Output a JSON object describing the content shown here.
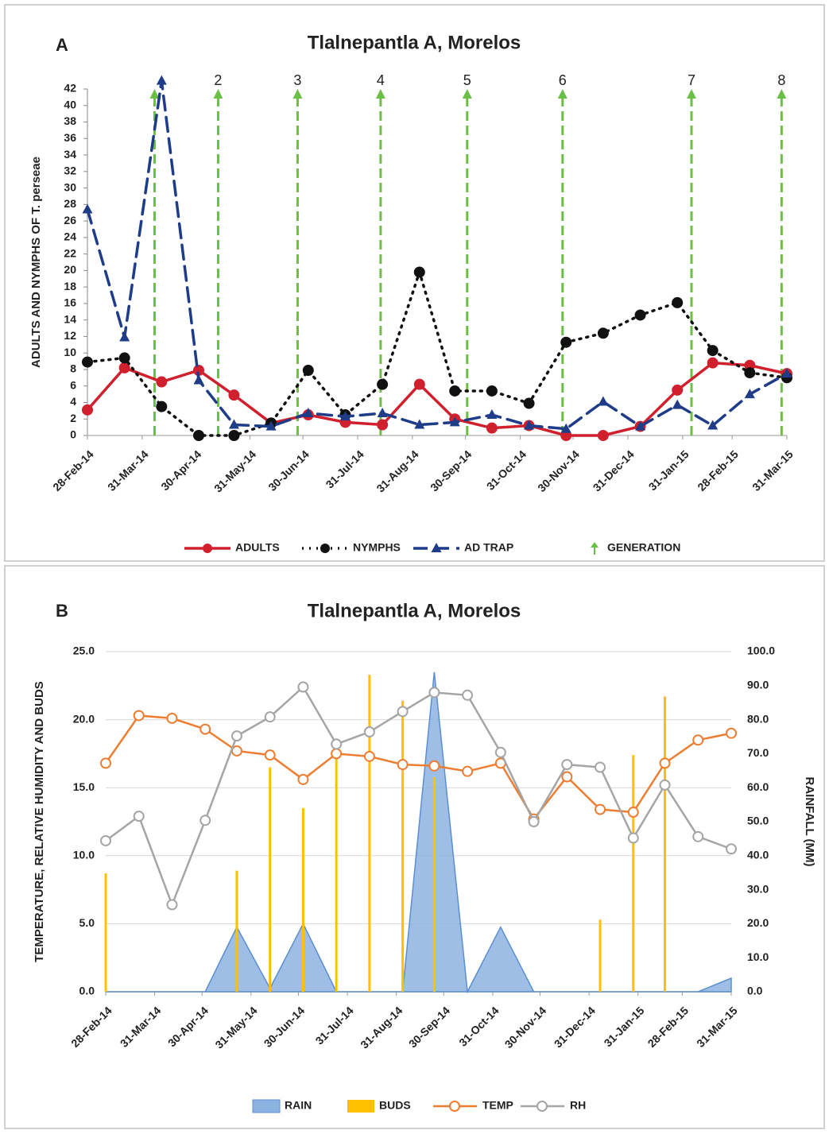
{
  "chart_data": [
    {
      "type": "line",
      "panel_label": "A",
      "title": "Tlalnepantla A, Morelos",
      "ylabel": "ADULTS AND NYMPHS OF T. perseae",
      "x": [
        "2014-02-28",
        "2014-03-21",
        "2014-04-11",
        "2014-05-02",
        "2014-05-22",
        "2014-06-12",
        "2014-07-03",
        "2014-07-24",
        "2014-08-14",
        "2014-09-04",
        "2014-09-24",
        "2014-10-15",
        "2014-11-05",
        "2014-11-26",
        "2014-12-17",
        "2015-01-07",
        "2015-01-28",
        "2015-02-17",
        "2015-03-10",
        "2015-03-31"
      ],
      "xlim": [
        "2014-02-28",
        "2015-03-31"
      ],
      "xticks": [
        {
          "value": "2014-02-28",
          "label": "28-Feb-14"
        },
        {
          "value": "2014-03-31",
          "label": "31-Mar-14"
        },
        {
          "value": "2014-04-30",
          "label": "30-Apr-14"
        },
        {
          "value": "2014-05-31",
          "label": "31-May-14"
        },
        {
          "value": "2014-06-30",
          "label": "30-Jun-14"
        },
        {
          "value": "2014-07-31",
          "label": "31-Jul-14"
        },
        {
          "value": "2014-08-31",
          "label": "31-Aug-14"
        },
        {
          "value": "2014-09-30",
          "label": "30-Sep-14"
        },
        {
          "value": "2014-10-31",
          "label": "31-Oct-14"
        },
        {
          "value": "2014-11-30",
          "label": "30-Nov-14"
        },
        {
          "value": "2014-12-31",
          "label": "31-Dec-14"
        },
        {
          "value": "2015-01-31",
          "label": "31-Jan-15"
        },
        {
          "value": "2015-02-28",
          "label": "28-Feb-15"
        },
        {
          "value": "2015-03-31",
          "label": "31-Mar-15"
        }
      ],
      "ylim": [
        0,
        42
      ],
      "yticks": [
        0,
        2,
        4,
        6,
        8,
        10,
        12,
        14,
        16,
        18,
        20,
        22,
        24,
        26,
        28,
        30,
        32,
        34,
        36,
        38,
        40,
        42
      ],
      "grid": false,
      "legend": "bottom",
      "series": [
        {
          "name": "ADULTS",
          "color": "#d0202e",
          "line_style": "solid",
          "marker": "circle",
          "values": [
            3.1,
            8.2,
            6.5,
            7.9,
            4.9,
            1.5,
            2.5,
            1.6,
            1.3,
            6.2,
            2.0,
            0.9,
            1.2,
            0,
            0,
            1.1,
            5.5,
            8.8,
            8.5,
            7.5
          ]
        },
        {
          "name": "NYMPHS",
          "color": "#111111",
          "line_style": "dotted",
          "marker": "circle",
          "values": [
            8.9,
            9.4,
            3.5,
            0,
            0,
            1.5,
            7.9,
            2.5,
            6.2,
            19.8,
            5.4,
            5.4,
            3.9,
            11.3,
            12.4,
            14.6,
            16.1,
            10.3,
            7.6,
            7.0
          ]
        },
        {
          "name": "AD TRAP",
          "color": "#1f3c88",
          "line_style": "dashed",
          "marker": "triangle",
          "values": [
            27.4,
            11.9,
            43,
            6.7,
            1.3,
            1.1,
            2.7,
            2.3,
            2.7,
            1.3,
            1.6,
            2.5,
            1.2,
            0.8,
            4.1,
            1.1,
            3.7,
            1.2,
            5.0,
            7.5
          ]
        }
      ],
      "generations": {
        "name": "GENERATION",
        "color": "#6cbf45",
        "x": [
          "2014-04-07",
          "2014-05-13",
          "2014-06-27",
          "2014-08-13",
          "2014-10-01",
          "2014-11-24",
          "2015-02-05",
          "2015-03-28"
        ],
        "labels": [
          null,
          "2",
          "3",
          "4",
          "5",
          "6",
          "7",
          "8"
        ]
      }
    },
    {
      "type": "combo",
      "panel_label": "B",
      "title": "Tlalnepantla A, Morelos",
      "ylabel": "TEMPERATURE, RELATIVE HUMIDITY AND BUDS",
      "y2label": "RAINFALL (MM)",
      "x": [
        "2014-02-28",
        "2014-03-21",
        "2014-04-11",
        "2014-05-02",
        "2014-05-22",
        "2014-06-12",
        "2014-07-03",
        "2014-07-24",
        "2014-08-14",
        "2014-09-04",
        "2014-09-24",
        "2014-10-15",
        "2014-11-05",
        "2014-11-26",
        "2014-12-17",
        "2015-01-07",
        "2015-01-28",
        "2015-02-17",
        "2015-03-10",
        "2015-03-31"
      ],
      "xlim": [
        "2014-02-28",
        "2015-03-31"
      ],
      "xticks": [
        {
          "value": "2014-02-28",
          "label": "28-Feb-14"
        },
        {
          "value": "2014-03-31",
          "label": "31-Mar-14"
        },
        {
          "value": "2014-04-30",
          "label": "30-Apr-14"
        },
        {
          "value": "2014-05-31",
          "label": "31-May-14"
        },
        {
          "value": "2014-06-30",
          "label": "30-Jun-14"
        },
        {
          "value": "2014-07-31",
          "label": "31-Jul-14"
        },
        {
          "value": "2014-08-31",
          "label": "31-Aug-14"
        },
        {
          "value": "2014-09-30",
          "label": "30-Sep-14"
        },
        {
          "value": "2014-10-31",
          "label": "31-Oct-14"
        },
        {
          "value": "2014-11-30",
          "label": "30-Nov-14"
        },
        {
          "value": "2014-12-31",
          "label": "31-Dec-14"
        },
        {
          "value": "2015-01-31",
          "label": "31-Jan-15"
        },
        {
          "value": "2015-02-28",
          "label": "28-Feb-15"
        },
        {
          "value": "2015-03-31",
          "label": "31-Mar-15"
        }
      ],
      "ylim": [
        0,
        25
      ],
      "yticks": [
        {
          "value": 0,
          "label": "0.0"
        },
        {
          "value": 5,
          "label": "5.0"
        },
        {
          "value": 10,
          "label": "10.0"
        },
        {
          "value": 15,
          "label": "15.0"
        },
        {
          "value": 20,
          "label": "20.0"
        },
        {
          "value": 25,
          "label": "25.0"
        }
      ],
      "y2lim": [
        0,
        100
      ],
      "y2ticks": [
        {
          "value": 0,
          "label": "0.0"
        },
        {
          "value": 10,
          "label": "10.0"
        },
        {
          "value": 20,
          "label": "20.0"
        },
        {
          "value": 30,
          "label": "30.0"
        },
        {
          "value": 40,
          "label": "40.0"
        },
        {
          "value": 50,
          "label": "50.0"
        },
        {
          "value": 60,
          "label": "60.0"
        },
        {
          "value": 70,
          "label": "70.0"
        },
        {
          "value": 80,
          "label": "80.0"
        },
        {
          "value": 90,
          "label": "90.0"
        },
        {
          "value": 100,
          "label": "100.0"
        }
      ],
      "grid": true,
      "legend": "bottom",
      "series": [
        {
          "name": "RAIN",
          "type": "area",
          "axis": "y2",
          "color": "#8db3e2",
          "values": [
            0,
            0,
            0,
            0,
            19,
            1,
            20,
            0,
            0,
            0,
            94,
            0,
            19,
            0,
            0,
            0,
            0,
            0,
            0,
            4
          ]
        },
        {
          "name": "BUDS",
          "type": "bar",
          "color": "#ffc000",
          "values": [
            8.7,
            0,
            0,
            0,
            8.9,
            16.5,
            13.5,
            18.5,
            23.3,
            21.4,
            15.8,
            0,
            0,
            0,
            0,
            5.3,
            17.4,
            21.7,
            0,
            0
          ]
        },
        {
          "name": "TEMP",
          "type": "line",
          "color": "#ed7d31",
          "values": [
            16.8,
            20.3,
            20.1,
            19.3,
            17.7,
            17.4,
            15.6,
            17.5,
            17.3,
            16.7,
            16.6,
            16.2,
            16.8,
            12.7,
            15.8,
            13.4,
            13.2,
            16.8,
            18.5,
            19.0
          ]
        },
        {
          "name": "RH",
          "type": "line",
          "color": "#a5a5a5",
          "values": [
            11.1,
            12.9,
            6.4,
            12.6,
            18.8,
            20.2,
            22.4,
            18.2,
            19.1,
            20.6,
            22.0,
            21.8,
            17.6,
            12.5,
            16.7,
            16.5,
            11.3,
            15.2,
            11.4,
            10.5
          ]
        }
      ]
    }
  ]
}
